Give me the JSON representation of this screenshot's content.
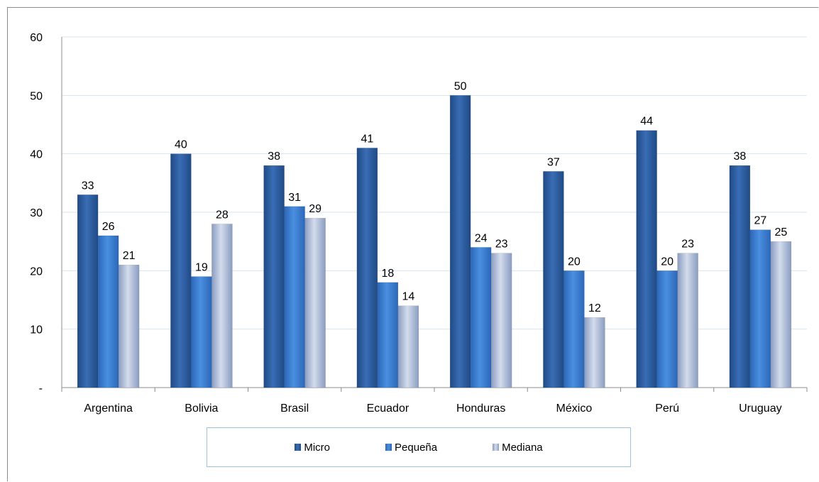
{
  "chart_data": {
    "type": "bar",
    "categories": [
      "Argentina",
      "Bolivia",
      "Brasil",
      "Ecuador",
      "Honduras",
      "México",
      "Perú",
      "Uruguay"
    ],
    "series": [
      {
        "name": "Micro",
        "values": [
          33,
          40,
          38,
          41,
          50,
          37,
          44,
          38
        ],
        "color": "#2f5f9e"
      },
      {
        "name": "Pequeña",
        "values": [
          26,
          19,
          31,
          18,
          24,
          20,
          20,
          27
        ],
        "color": "#3f7fcf"
      },
      {
        "name": "Mediana",
        "values": [
          21,
          28,
          29,
          14,
          23,
          12,
          23,
          25
        ],
        "color": "#a9b9d6"
      }
    ],
    "yticks": [
      "-",
      "10",
      "20",
      "30",
      "40",
      "50",
      "60"
    ],
    "ylim": [
      0,
      60
    ],
    "grid": true,
    "legend_position": "bottom"
  }
}
